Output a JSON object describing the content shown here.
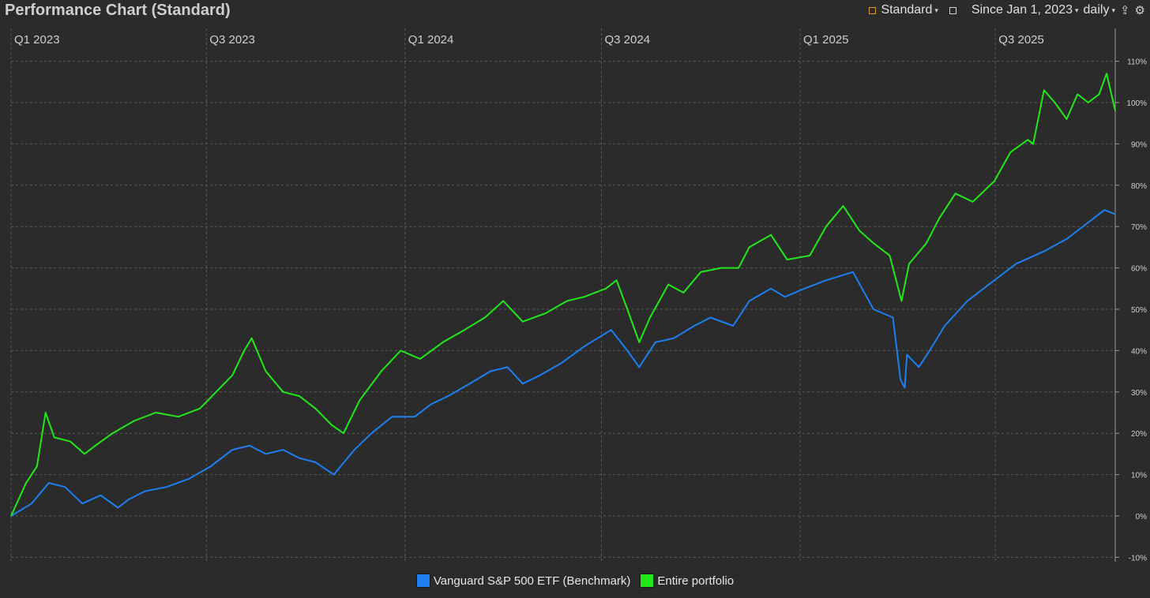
{
  "header": {
    "title": "Performance Chart (Standard)",
    "view_label": "Standard",
    "range_label": "Since Jan 1, 2023",
    "interval_label": "daily"
  },
  "colors": {
    "benchmark": "#1e7ff0",
    "portfolio": "#22e81a",
    "grid": "#5a5a5a",
    "axis_text": "#cfcfcf"
  },
  "chart_data": {
    "type": "line",
    "x_tick_labels": [
      "Q1 2023",
      "Q3 2023",
      "Q1 2024",
      "Q3 2024",
      "Q1 2025",
      "Q3 2025"
    ],
    "x_tick_dates": [
      "2023-01-01",
      "2023-07-01",
      "2024-01-01",
      "2024-07-01",
      "2025-01-01",
      "2025-07-01"
    ],
    "x_range": [
      "2023-01-01",
      "2025-10-20"
    ],
    "y_tick_labels": [
      "110%",
      "100%",
      "90%",
      "80%",
      "70%",
      "60%",
      "50%",
      "40%",
      "30%",
      "20%",
      "10%",
      "0%",
      "-10%"
    ],
    "ylim": [
      -10,
      112
    ],
    "grid": true,
    "legend_position": "bottom-center",
    "series": [
      {
        "name": "Vanguard S&P 500 ETF (Benchmark)",
        "points": [
          [
            "2023-01-01",
            0
          ],
          [
            "2023-01-20",
            3
          ],
          [
            "2023-02-05",
            8
          ],
          [
            "2023-02-20",
            7
          ],
          [
            "2023-03-08",
            3
          ],
          [
            "2023-03-25",
            5
          ],
          [
            "2023-04-10",
            2
          ],
          [
            "2023-04-20",
            4
          ],
          [
            "2023-05-05",
            6
          ],
          [
            "2023-05-25",
            7
          ],
          [
            "2023-06-15",
            9
          ],
          [
            "2023-07-05",
            12
          ],
          [
            "2023-07-25",
            16
          ],
          [
            "2023-08-10",
            17
          ],
          [
            "2023-08-25",
            15
          ],
          [
            "2023-09-10",
            16
          ],
          [
            "2023-09-25",
            14
          ],
          [
            "2023-10-10",
            13
          ],
          [
            "2023-10-27",
            10
          ],
          [
            "2023-11-15",
            16
          ],
          [
            "2023-12-01",
            20
          ],
          [
            "2023-12-20",
            24
          ],
          [
            "2024-01-10",
            24
          ],
          [
            "2024-01-25",
            27
          ],
          [
            "2024-02-10",
            29
          ],
          [
            "2024-03-01",
            32
          ],
          [
            "2024-03-20",
            35
          ],
          [
            "2024-04-05",
            36
          ],
          [
            "2024-04-19",
            32
          ],
          [
            "2024-05-05",
            34
          ],
          [
            "2024-05-25",
            37
          ],
          [
            "2024-06-15",
            41
          ],
          [
            "2024-07-10",
            45
          ],
          [
            "2024-07-25",
            40
          ],
          [
            "2024-08-05",
            36
          ],
          [
            "2024-08-20",
            42
          ],
          [
            "2024-09-06",
            43
          ],
          [
            "2024-09-25",
            46
          ],
          [
            "2024-10-10",
            48
          ],
          [
            "2024-10-31",
            46
          ],
          [
            "2024-11-15",
            52
          ],
          [
            "2024-12-05",
            55
          ],
          [
            "2024-12-18",
            53
          ],
          [
            "2025-01-05",
            55
          ],
          [
            "2025-01-25",
            57
          ],
          [
            "2025-02-19",
            59
          ],
          [
            "2025-03-10",
            50
          ],
          [
            "2025-03-28",
            48
          ],
          [
            "2025-04-04",
            33
          ],
          [
            "2025-04-08",
            31
          ],
          [
            "2025-04-10",
            39
          ],
          [
            "2025-04-21",
            36
          ],
          [
            "2025-05-01",
            40
          ],
          [
            "2025-05-15",
            46
          ],
          [
            "2025-06-05",
            52
          ],
          [
            "2025-06-30",
            57
          ],
          [
            "2025-07-20",
            61
          ],
          [
            "2025-08-15",
            64
          ],
          [
            "2025-09-05",
            67
          ],
          [
            "2025-09-25",
            71
          ],
          [
            "2025-10-10",
            74
          ],
          [
            "2025-10-20",
            73
          ]
        ]
      },
      {
        "name": "Entire portfolio",
        "points": [
          [
            "2023-01-01",
            0
          ],
          [
            "2023-01-15",
            8
          ],
          [
            "2023-01-25",
            12
          ],
          [
            "2023-02-02",
            25
          ],
          [
            "2023-02-10",
            19
          ],
          [
            "2023-02-25",
            18
          ],
          [
            "2023-03-10",
            15
          ],
          [
            "2023-03-20",
            17
          ],
          [
            "2023-04-05",
            20
          ],
          [
            "2023-04-25",
            23
          ],
          [
            "2023-05-15",
            25
          ],
          [
            "2023-06-05",
            24
          ],
          [
            "2023-06-25",
            26
          ],
          [
            "2023-07-10",
            30
          ],
          [
            "2023-07-25",
            34
          ],
          [
            "2023-08-05",
            40
          ],
          [
            "2023-08-12",
            43
          ],
          [
            "2023-08-25",
            35
          ],
          [
            "2023-09-10",
            30
          ],
          [
            "2023-09-25",
            29
          ],
          [
            "2023-10-10",
            26
          ],
          [
            "2023-10-25",
            22
          ],
          [
            "2023-11-05",
            20
          ],
          [
            "2023-11-20",
            28
          ],
          [
            "2023-12-10",
            35
          ],
          [
            "2023-12-28",
            40
          ],
          [
            "2024-01-15",
            38
          ],
          [
            "2024-02-05",
            42
          ],
          [
            "2024-02-25",
            45
          ],
          [
            "2024-03-15",
            48
          ],
          [
            "2024-04-01",
            52
          ],
          [
            "2024-04-19",
            47
          ],
          [
            "2024-05-10",
            49
          ],
          [
            "2024-05-30",
            52
          ],
          [
            "2024-06-15",
            53
          ],
          [
            "2024-07-05",
            55
          ],
          [
            "2024-07-15",
            57
          ],
          [
            "2024-07-25",
            50
          ],
          [
            "2024-08-05",
            42
          ],
          [
            "2024-08-15",
            48
          ],
          [
            "2024-09-01",
            56
          ],
          [
            "2024-09-15",
            54
          ],
          [
            "2024-10-01",
            59
          ],
          [
            "2024-10-20",
            60
          ],
          [
            "2024-11-05",
            60
          ],
          [
            "2024-11-15",
            65
          ],
          [
            "2024-12-05",
            68
          ],
          [
            "2024-12-20",
            62
          ],
          [
            "2025-01-10",
            63
          ],
          [
            "2025-01-25",
            70
          ],
          [
            "2025-02-10",
            75
          ],
          [
            "2025-02-25",
            69
          ],
          [
            "2025-03-10",
            66
          ],
          [
            "2025-03-25",
            63
          ],
          [
            "2025-04-05",
            52
          ],
          [
            "2025-04-12",
            61
          ],
          [
            "2025-04-28",
            66
          ],
          [
            "2025-05-10",
            72
          ],
          [
            "2025-05-25",
            78
          ],
          [
            "2025-06-10",
            76
          ],
          [
            "2025-06-30",
            81
          ],
          [
            "2025-07-15",
            88
          ],
          [
            "2025-07-31",
            91
          ],
          [
            "2025-08-05",
            90
          ],
          [
            "2025-08-15",
            103
          ],
          [
            "2025-08-25",
            100
          ],
          [
            "2025-09-05",
            96
          ],
          [
            "2025-09-15",
            102
          ],
          [
            "2025-09-25",
            100
          ],
          [
            "2025-10-05",
            102
          ],
          [
            "2025-10-12",
            107
          ],
          [
            "2025-10-20",
            98
          ]
        ]
      }
    ]
  }
}
